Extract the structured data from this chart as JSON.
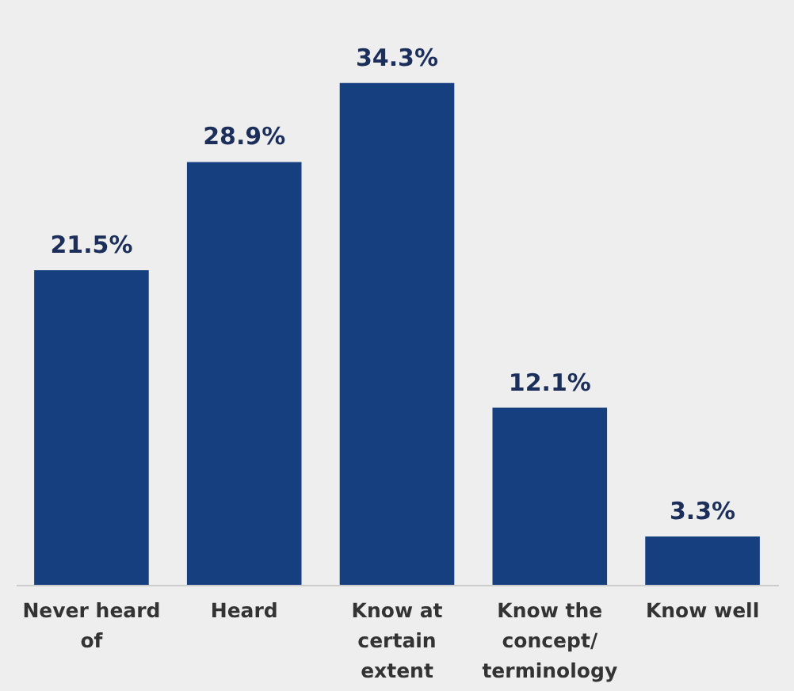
{
  "chart_data": {
    "type": "bar",
    "categories": [
      "Never heard of",
      "Heard",
      "Know at certain extent",
      "Know the concept/ terminology",
      "Know well"
    ],
    "values": [
      21.5,
      28.9,
      34.3,
      12.1,
      3.3
    ],
    "color": "#163f7f",
    "value_labels": [
      "21.5%",
      "28.9%",
      "34.3%",
      "12.1%",
      "3.3%"
    ],
    "tick_labels": "x"
  }
}
